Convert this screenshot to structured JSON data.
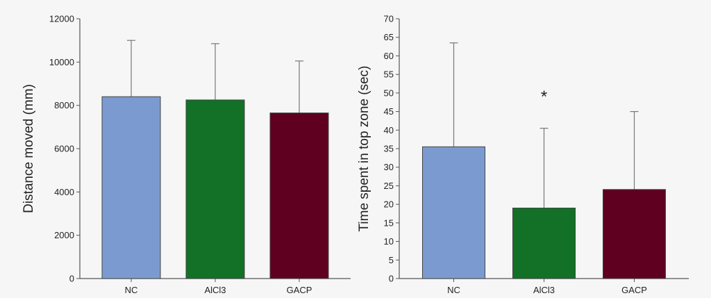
{
  "chart_data": [
    {
      "type": "bar",
      "categories": [
        "NC",
        "AlCl3",
        "GACP"
      ],
      "values": [
        8400,
        8250,
        7650
      ],
      "error_upper": [
        11000,
        10850,
        10050
      ],
      "colors": [
        "#7b9bd0",
        "#127127",
        "#600020"
      ],
      "xlabel": "",
      "ylabel": "Distance moved (mm)",
      "ylim": [
        0,
        12000
      ],
      "yticks": [
        0,
        2000,
        4000,
        6000,
        8000,
        10000,
        12000
      ],
      "annotations": [],
      "grid": false
    },
    {
      "type": "bar",
      "categories": [
        "NC",
        "AlCl3",
        "GACP"
      ],
      "values": [
        35.5,
        19,
        24
      ],
      "error_upper": [
        63.5,
        40.5,
        45
      ],
      "colors": [
        "#7b9bd0",
        "#127127",
        "#600020"
      ],
      "xlabel": "",
      "ylabel": "Time spent in top zone (sec)",
      "ylim": [
        0,
        70
      ],
      "yticks": [
        0,
        5,
        10,
        15,
        20,
        25,
        30,
        35,
        40,
        45,
        50,
        55,
        60,
        65,
        70
      ],
      "annotations": [
        {
          "text": "*",
          "category": "AlCl3",
          "y": 49
        }
      ],
      "grid": false
    }
  ]
}
